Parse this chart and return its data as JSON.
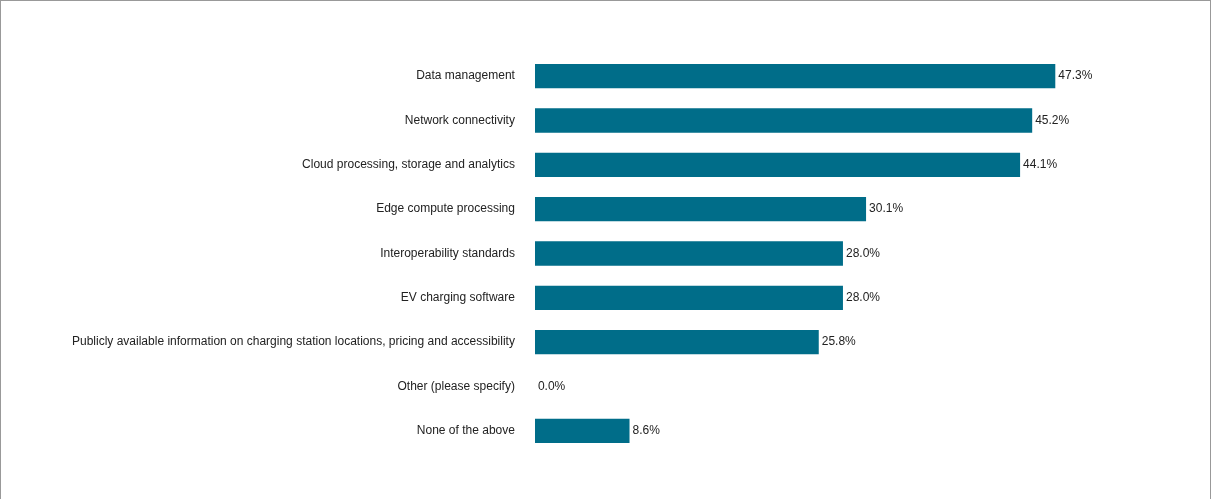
{
  "chart_data": {
    "type": "bar",
    "orientation": "horizontal",
    "categories": [
      "Data management",
      "Network connectivity",
      "Cloud processing, storage and analytics",
      "Edge compute processing",
      "Interoperability standards",
      "EV charging software",
      "Publicly available information on charging station locations, pricing and accessibility",
      "Other (please specify)",
      "None of the above"
    ],
    "values": [
      47.3,
      45.2,
      44.1,
      30.1,
      28.0,
      28.0,
      25.8,
      0.0,
      8.6
    ],
    "value_labels": [
      "47.3%",
      "45.2%",
      "44.1%",
      "30.1%",
      "28.0%",
      "28.0%",
      "25.8%",
      "0.0%",
      "8.6%"
    ],
    "color": "#006d89"
  }
}
